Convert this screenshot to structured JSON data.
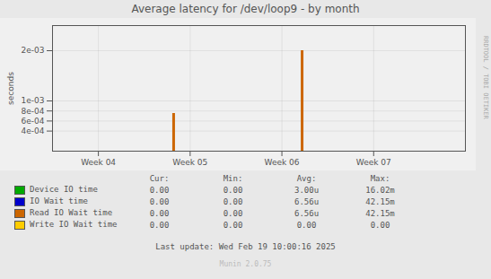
{
  "chart_data": {
    "type": "bar",
    "title": "Average latency for /dev/loop9 - by month",
    "ylabel": "seconds",
    "x": [
      4.82,
      6.22
    ],
    "values": [
      0.00075,
      0.002
    ],
    "color": "#cc6600",
    "xlim": [
      3.5,
      8.0
    ],
    "xticks": [
      {
        "value": 4,
        "label": "Week 04"
      },
      {
        "value": 5,
        "label": "Week 05"
      },
      {
        "value": 6,
        "label": "Week 06"
      },
      {
        "value": 7,
        "label": "Week 07"
      }
    ],
    "ylim": [
      0,
      0.0025
    ],
    "yticks": [
      {
        "value": 0.0004,
        "label": "4e-04"
      },
      {
        "value": 0.0006,
        "label": "6e-04"
      },
      {
        "value": 0.0008,
        "label": "8e-04"
      },
      {
        "value": 0.001,
        "label": "1e-03"
      },
      {
        "value": 0.002,
        "label": "2e-03"
      }
    ],
    "grid": true,
    "legend": "bottom",
    "legend_table": {
      "columns": [
        "Cur:",
        "Min:",
        "Avg:",
        "Max:"
      ],
      "rows": [
        {
          "name": "Device IO time",
          "color": "#00aa00",
          "values": [
            "0.00",
            "0.00",
            "3.00u",
            "16.02m"
          ]
        },
        {
          "name": "IO Wait time",
          "color": "#0000cc",
          "values": [
            "0.00",
            "0.00",
            "6.56u",
            "42.15m"
          ]
        },
        {
          "name": "Read IO Wait time",
          "color": "#cc6600",
          "values": [
            "0.00",
            "0.00",
            "6.56u",
            "42.15m"
          ]
        },
        {
          "name": "Write IO Wait time",
          "color": "#ffcc00",
          "values": [
            "0.00",
            "0.00",
            "0.00",
            "0.00"
          ]
        }
      ]
    },
    "annotations": [
      "Last update: Wed Feb 19 10:00:16 2025",
      "Munin 2.0.75",
      "RRDTOOL / TOBI OETIKER"
    ]
  }
}
